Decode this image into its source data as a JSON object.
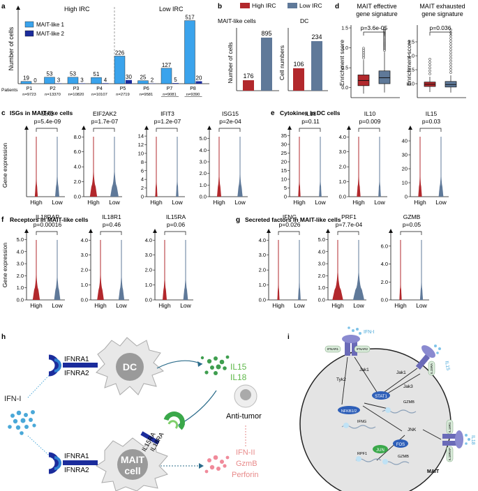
{
  "colors": {
    "high": "#b2282c",
    "low": "#5f7999",
    "maitlike1": "#3aa3ec",
    "maitlike2": "#1b2c9c",
    "il15": "#4caf50",
    "ifn": "#f08a8a",
    "dc": "#666666"
  },
  "panel_labels": {
    "a": "a",
    "b": "b",
    "c": "c",
    "d": "d",
    "e": "e",
    "f": "f",
    "g": "g",
    "h": "h",
    "i": "i"
  },
  "chart_data": [
    {
      "id": "a",
      "type": "bar",
      "group_labels": [
        "High IRC",
        "Low IRC"
      ],
      "ylabel": "Number of cells",
      "patients_label": "Patients",
      "categories": [
        "P1",
        "P2",
        "P3",
        "P4",
        "P5",
        "P6",
        "P7",
        "P8"
      ],
      "n_labels": [
        "n=9723",
        "n=13370",
        "n=10820",
        "n=10107",
        "n=2719",
        "n=9581",
        "n=9081",
        "n=9390"
      ],
      "series": [
        {
          "name": "MAIT-like 1",
          "values": [
            19,
            53,
            53,
            51,
            226,
            25,
            127,
            517
          ]
        },
        {
          "name": "MAIT-like 2",
          "values": [
            0,
            3,
            3,
            4,
            30,
            2,
            5,
            20
          ]
        }
      ],
      "ylim": [
        0,
        560
      ]
    },
    {
      "id": "b",
      "type": "bar",
      "legend": [
        "High IRC",
        "Low IRC"
      ],
      "ylabel_left": "Number of cells",
      "ylabel_right": "Cell numbers",
      "subplots": [
        {
          "title": "MAIT-like cells",
          "values": [
            176,
            895
          ],
          "ylim": [
            0,
            1000
          ]
        },
        {
          "title": "DC",
          "values": [
            106,
            234
          ],
          "ylim": [
            0,
            280
          ]
        }
      ]
    },
    {
      "id": "d",
      "type": "boxplot",
      "ylabel": "Enrichment score",
      "subplots": [
        {
          "title": [
            "MAIT effective",
            "gene signature"
          ],
          "pvalue": "p=3.6e-05",
          "ylim": [
            -0.25,
            1.5
          ],
          "ticks": [
            "0.0",
            "0.5",
            "1.0",
            "1.5"
          ],
          "boxes": [
            {
              "q1": 0.05,
              "median": 0.18,
              "q3": 0.32,
              "lo": -0.15,
              "hi": 0.7
            },
            {
              "q1": 0.1,
              "median": 0.25,
              "q3": 0.42,
              "lo": -0.12,
              "hi": 0.9
            }
          ]
        },
        {
          "title": [
            "MAIT exhausted",
            "gene signature"
          ],
          "pvalue": "p=0.036",
          "ylim": [
            -0.5,
            2.0
          ],
          "ticks": [
            "0.0",
            "0.5",
            "1.0",
            "1.5"
          ],
          "boxes": [
            {
              "q1": -0.1,
              "median": -0.02,
              "q3": 0.06,
              "lo": -0.3,
              "hi": 0.25
            },
            {
              "q1": -0.12,
              "median": -0.03,
              "q3": 0.08,
              "lo": -0.32,
              "hi": 0.3
            }
          ]
        }
      ]
    },
    {
      "id": "c",
      "type": "violin",
      "section": "ISGs in MAIT-like cells",
      "ylabel": "Gene expression",
      "subplots": [
        {
          "gene": "MX1",
          "pvalue": "p=5.4e-09",
          "ticks": [],
          "max": 5.5,
          "w": [
            0.12,
            0.25
          ]
        },
        {
          "gene": "EIF2AK2",
          "pvalue": "p=1.7e-07",
          "ticks": [
            "0.0",
            "2.0",
            "4.0",
            "6.0",
            "8.0"
          ],
          "max": 8.4,
          "w": [
            0.55,
            0.65
          ]
        },
        {
          "gene": "IFIT3",
          "pvalue": "p=1.2e-07",
          "ticks": [
            "0",
            "2",
            "4",
            "6",
            "8",
            "10",
            "12",
            "14"
          ],
          "max": 14.5,
          "w": [
            0.05,
            0.08
          ]
        },
        {
          "gene": "ISG15",
          "pvalue": "p=2e-04",
          "ticks": [
            "0.0",
            "1.0",
            "2.0",
            "3.0",
            "4.0",
            "5.0"
          ],
          "max": 5.4,
          "w": [
            0.25,
            0.35
          ]
        }
      ],
      "xlabels": [
        "High",
        "Low"
      ]
    },
    {
      "id": "e",
      "type": "violin",
      "section": "Cytokines in DC cells",
      "subplots": [
        {
          "gene": "IL18",
          "pvalue": "p=0.11",
          "ticks": [
            "0",
            "5",
            "10",
            "15",
            "20",
            "25",
            "30",
            "35"
          ],
          "max": 36,
          "w": [
            0.06,
            0.08
          ]
        },
        {
          "gene": "IL10",
          "pvalue": "p=0.009",
          "ticks": [
            "0.0",
            "1.0",
            "2.0",
            "3.0",
            "4.0"
          ],
          "max": 4.2,
          "w": [
            0.2,
            0.08
          ]
        },
        {
          "gene": "IL15",
          "pvalue": "p=0.03",
          "ticks": [
            "0",
            "10",
            "20",
            "30",
            "40"
          ],
          "max": 45,
          "w": [
            0.2,
            0.3
          ]
        }
      ],
      "xlabels": [
        "High",
        "Low"
      ]
    },
    {
      "id": "f",
      "type": "violin",
      "section": "Receptors in MAIT-like cells",
      "ylabel": "Gene expression",
      "subplots": [
        {
          "gene": "IL18RAP",
          "pvalue": "p=0.00016",
          "ticks": [
            "0.0",
            "1.0",
            "2.0",
            "3.0",
            "4.0",
            "5.0"
          ],
          "max": 5.2,
          "w": [
            0.55,
            0.45
          ]
        },
        {
          "gene": "IL18R1",
          "pvalue": "p=0.46",
          "ticks": [
            "0.0",
            "1.0",
            "2.0",
            "3.0",
            "4.0"
          ],
          "max": 4.2,
          "w": [
            0.5,
            0.4
          ]
        },
        {
          "gene": "IL15RA",
          "pvalue": "p=0.06",
          "ticks": [
            "0.0",
            "1.0",
            "2.0",
            "3.0",
            "4.0"
          ],
          "max": 4.2,
          "w": [
            0.25,
            0.3
          ]
        }
      ],
      "xlabels": [
        "High",
        "Low"
      ]
    },
    {
      "id": "g",
      "type": "violin",
      "section": "Secreted factors in MAIT-like cells",
      "subplots": [
        {
          "gene": "IFNG",
          "pvalue": "p=0.026",
          "ticks": [
            "0.0",
            "1.0",
            "2.0",
            "3.0",
            "4.0"
          ],
          "max": 4.2,
          "w": [
            0.05,
            0.1
          ]
        },
        {
          "gene": "PRF1",
          "pvalue": "p=7.7e-04",
          "ticks": [
            "0.0",
            "1.0",
            "2.0",
            "3.0",
            "4.0",
            "5.0"
          ],
          "max": 5.2,
          "w": [
            0.9,
            0.95
          ]
        },
        {
          "gene": "GZMB",
          "pvalue": "p=0.05",
          "ticks": [
            "0.0",
            "2.0",
            "4.0",
            "6.0"
          ],
          "max": 7,
          "w": [
            0.06,
            0.12
          ]
        }
      ],
      "xlabels": [
        "High",
        "Low"
      ]
    }
  ],
  "diagram_h": {
    "ifnra1": "IFNRA1",
    "ifnra2": "IFNRA2",
    "dc": "DC",
    "ifni": "IFN-I",
    "il15": "IL15",
    "il18": "IL18",
    "il15ra": "IL15RA",
    "il18ra": "IL18RA",
    "mait": "MAIT",
    "cell": "cell",
    "anti_tumor": "Anti-tumor",
    "ifnii": "IFN-II",
    "gzmb": "GzmB",
    "perforin": "Perforin"
  },
  "diagram_i": {
    "ifni": "IFN-I",
    "ifnar1": "IFNAR1",
    "ifnar2": "IFNAR2",
    "il15": "IL15",
    "il15ra": "IL15RA",
    "il18": "IL18",
    "il18r1": "IL18R1",
    "il18rap": "IL18RAP",
    "tyk2": "Tyk2",
    "jak1a": "Jak1",
    "jak1b": "Jak1",
    "jak3": "Jak3",
    "stat1": "STAT1",
    "nfkb": "NFKB1/2",
    "jnk": "JNK",
    "jun": "JUN",
    "fos": "FOS",
    "gzmb1": "GZMB",
    "ifng": "IFNG",
    "rpf1": "RPF1",
    "gzmb2": "GZMB",
    "mait": "MAIT"
  }
}
